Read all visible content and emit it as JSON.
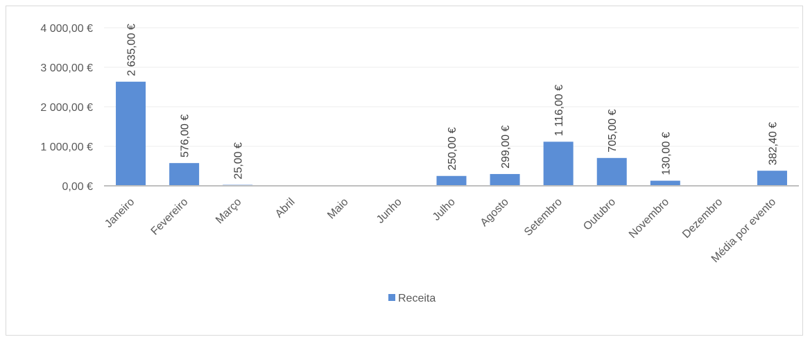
{
  "chart_data": {
    "type": "bar",
    "categories": [
      "Janeiro",
      "Fevereiro",
      "Março",
      "Abril",
      "Maio",
      "Junho",
      "Julho",
      "Agosto",
      "Setembro",
      "Outubro",
      "Novembro",
      "Dezembro",
      "Média por evento"
    ],
    "series": [
      {
        "name": "Receita",
        "color": "#5b8ed6",
        "values": [
          2635.0,
          576.0,
          25.0,
          0,
          0,
          0,
          250.0,
          299.0,
          1116.0,
          705.0,
          130.0,
          0,
          382.4
        ],
        "data_labels": [
          "2 635,00 €",
          "576,00 €",
          "25,00 €",
          "",
          "",
          "",
          "250,00 €",
          "299,00 €",
          "1 116,00 €",
          "705,00 €",
          "130,00 €",
          "",
          "382,40 €"
        ]
      }
    ],
    "ylim": [
      0,
      4000
    ],
    "yticks": [
      0,
      1000,
      2000,
      3000,
      4000
    ],
    "ytick_labels": [
      "0,00 €",
      "1 000,00 €",
      "2 000,00 €",
      "3 000,00 €",
      "4 000,00 €"
    ],
    "grid": true,
    "legend": {
      "position": "bottom",
      "label": "Receita"
    },
    "title": "",
    "xlabel": "",
    "ylabel": ""
  }
}
